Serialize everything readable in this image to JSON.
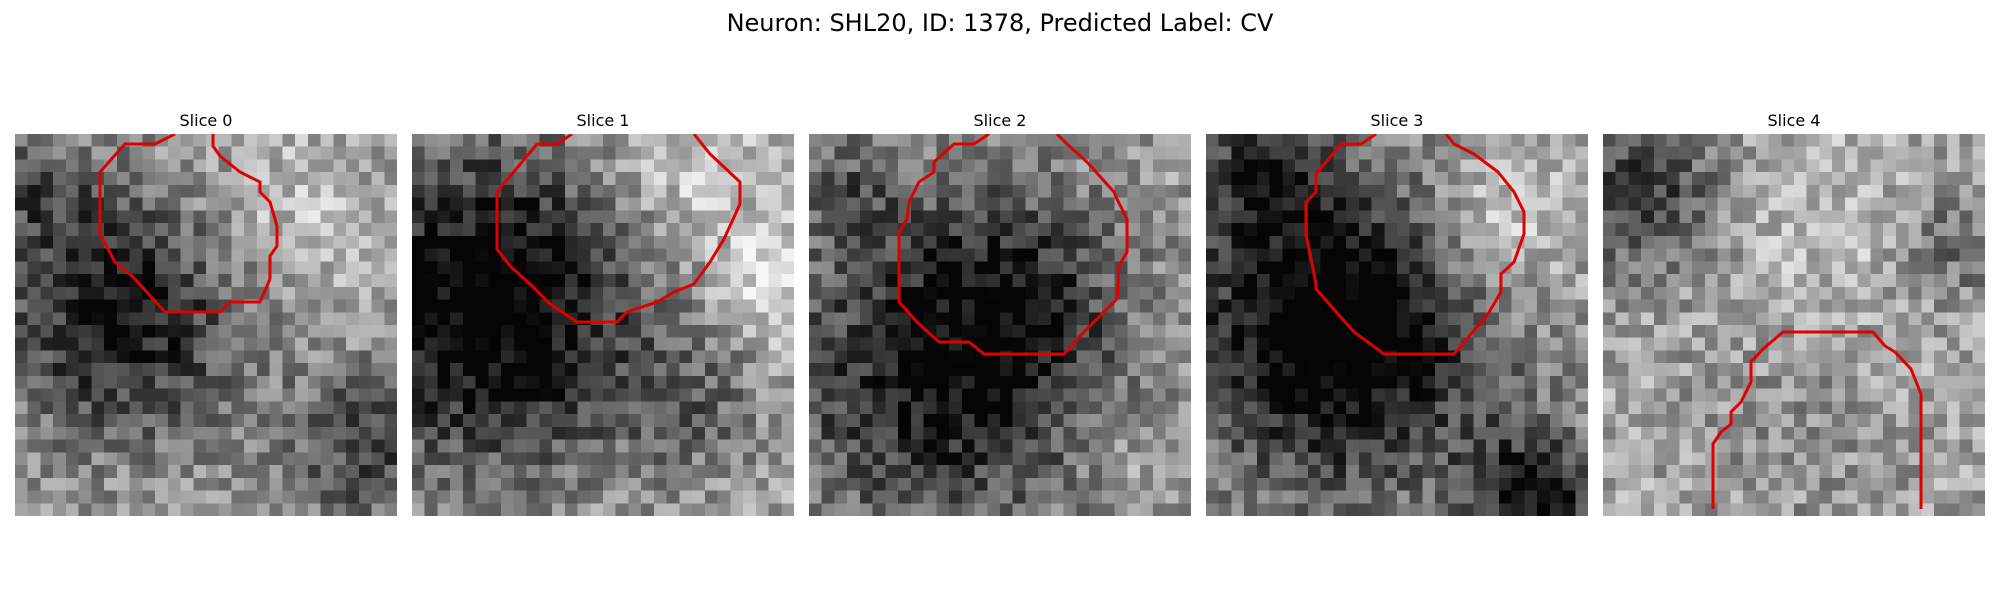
{
  "figure": {
    "suptitle": "Neuron: SHL20, ID: 1378, Predicted Label: CV",
    "contour_color": "#e00000"
  },
  "panels": [
    {
      "title": "Slice 0"
    },
    {
      "title": "Slice 1"
    },
    {
      "title": "Slice 2"
    },
    {
      "title": "Slice 3"
    },
    {
      "title": "Slice 4"
    }
  ]
}
